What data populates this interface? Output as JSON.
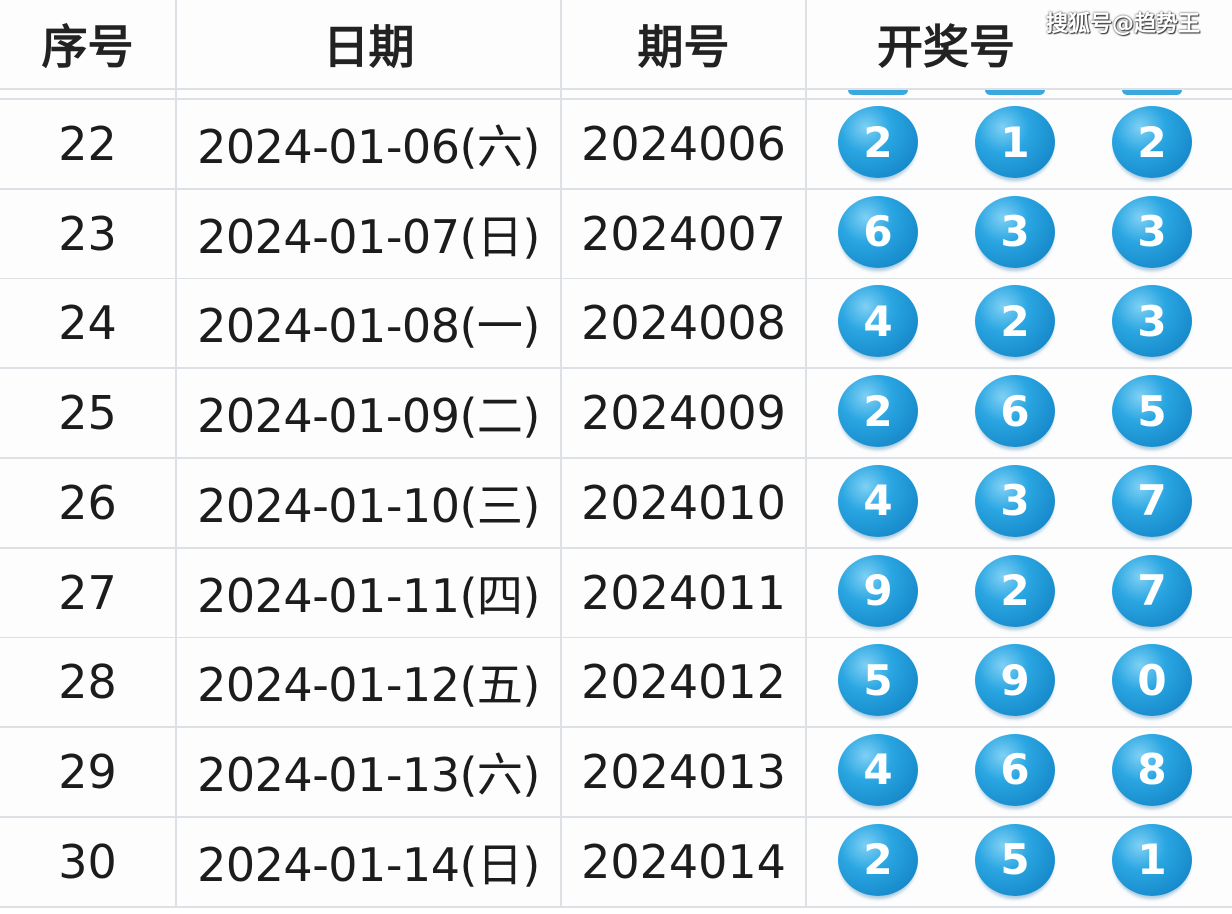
{
  "headers": [
    "序号",
    "日期",
    "期号",
    "开奖号"
  ],
  "watermark": "搜狐号@趋势王",
  "ball_color": "#1f97d6",
  "rows": [
    {
      "seq": "22",
      "date": "2024-01-06(六)",
      "issue": "2024006",
      "nums": [
        "2",
        "1",
        "2"
      ]
    },
    {
      "seq": "23",
      "date": "2024-01-07(日)",
      "issue": "2024007",
      "nums": [
        "6",
        "3",
        "3"
      ]
    },
    {
      "seq": "24",
      "date": "2024-01-08(一)",
      "issue": "2024008",
      "nums": [
        "4",
        "2",
        "3"
      ]
    },
    {
      "seq": "25",
      "date": "2024-01-09(二)",
      "issue": "2024009",
      "nums": [
        "2",
        "6",
        "5"
      ]
    },
    {
      "seq": "26",
      "date": "2024-01-10(三)",
      "issue": "2024010",
      "nums": [
        "4",
        "3",
        "7"
      ]
    },
    {
      "seq": "27",
      "date": "2024-01-11(四)",
      "issue": "2024011",
      "nums": [
        "9",
        "2",
        "7"
      ]
    },
    {
      "seq": "28",
      "date": "2024-01-12(五)",
      "issue": "2024012",
      "nums": [
        "5",
        "9",
        "0"
      ]
    },
    {
      "seq": "29",
      "date": "2024-01-13(六)",
      "issue": "2024013",
      "nums": [
        "4",
        "6",
        "8"
      ]
    },
    {
      "seq": "30",
      "date": "2024-01-14(日)",
      "issue": "2024014",
      "nums": [
        "2",
        "5",
        "1"
      ]
    }
  ]
}
